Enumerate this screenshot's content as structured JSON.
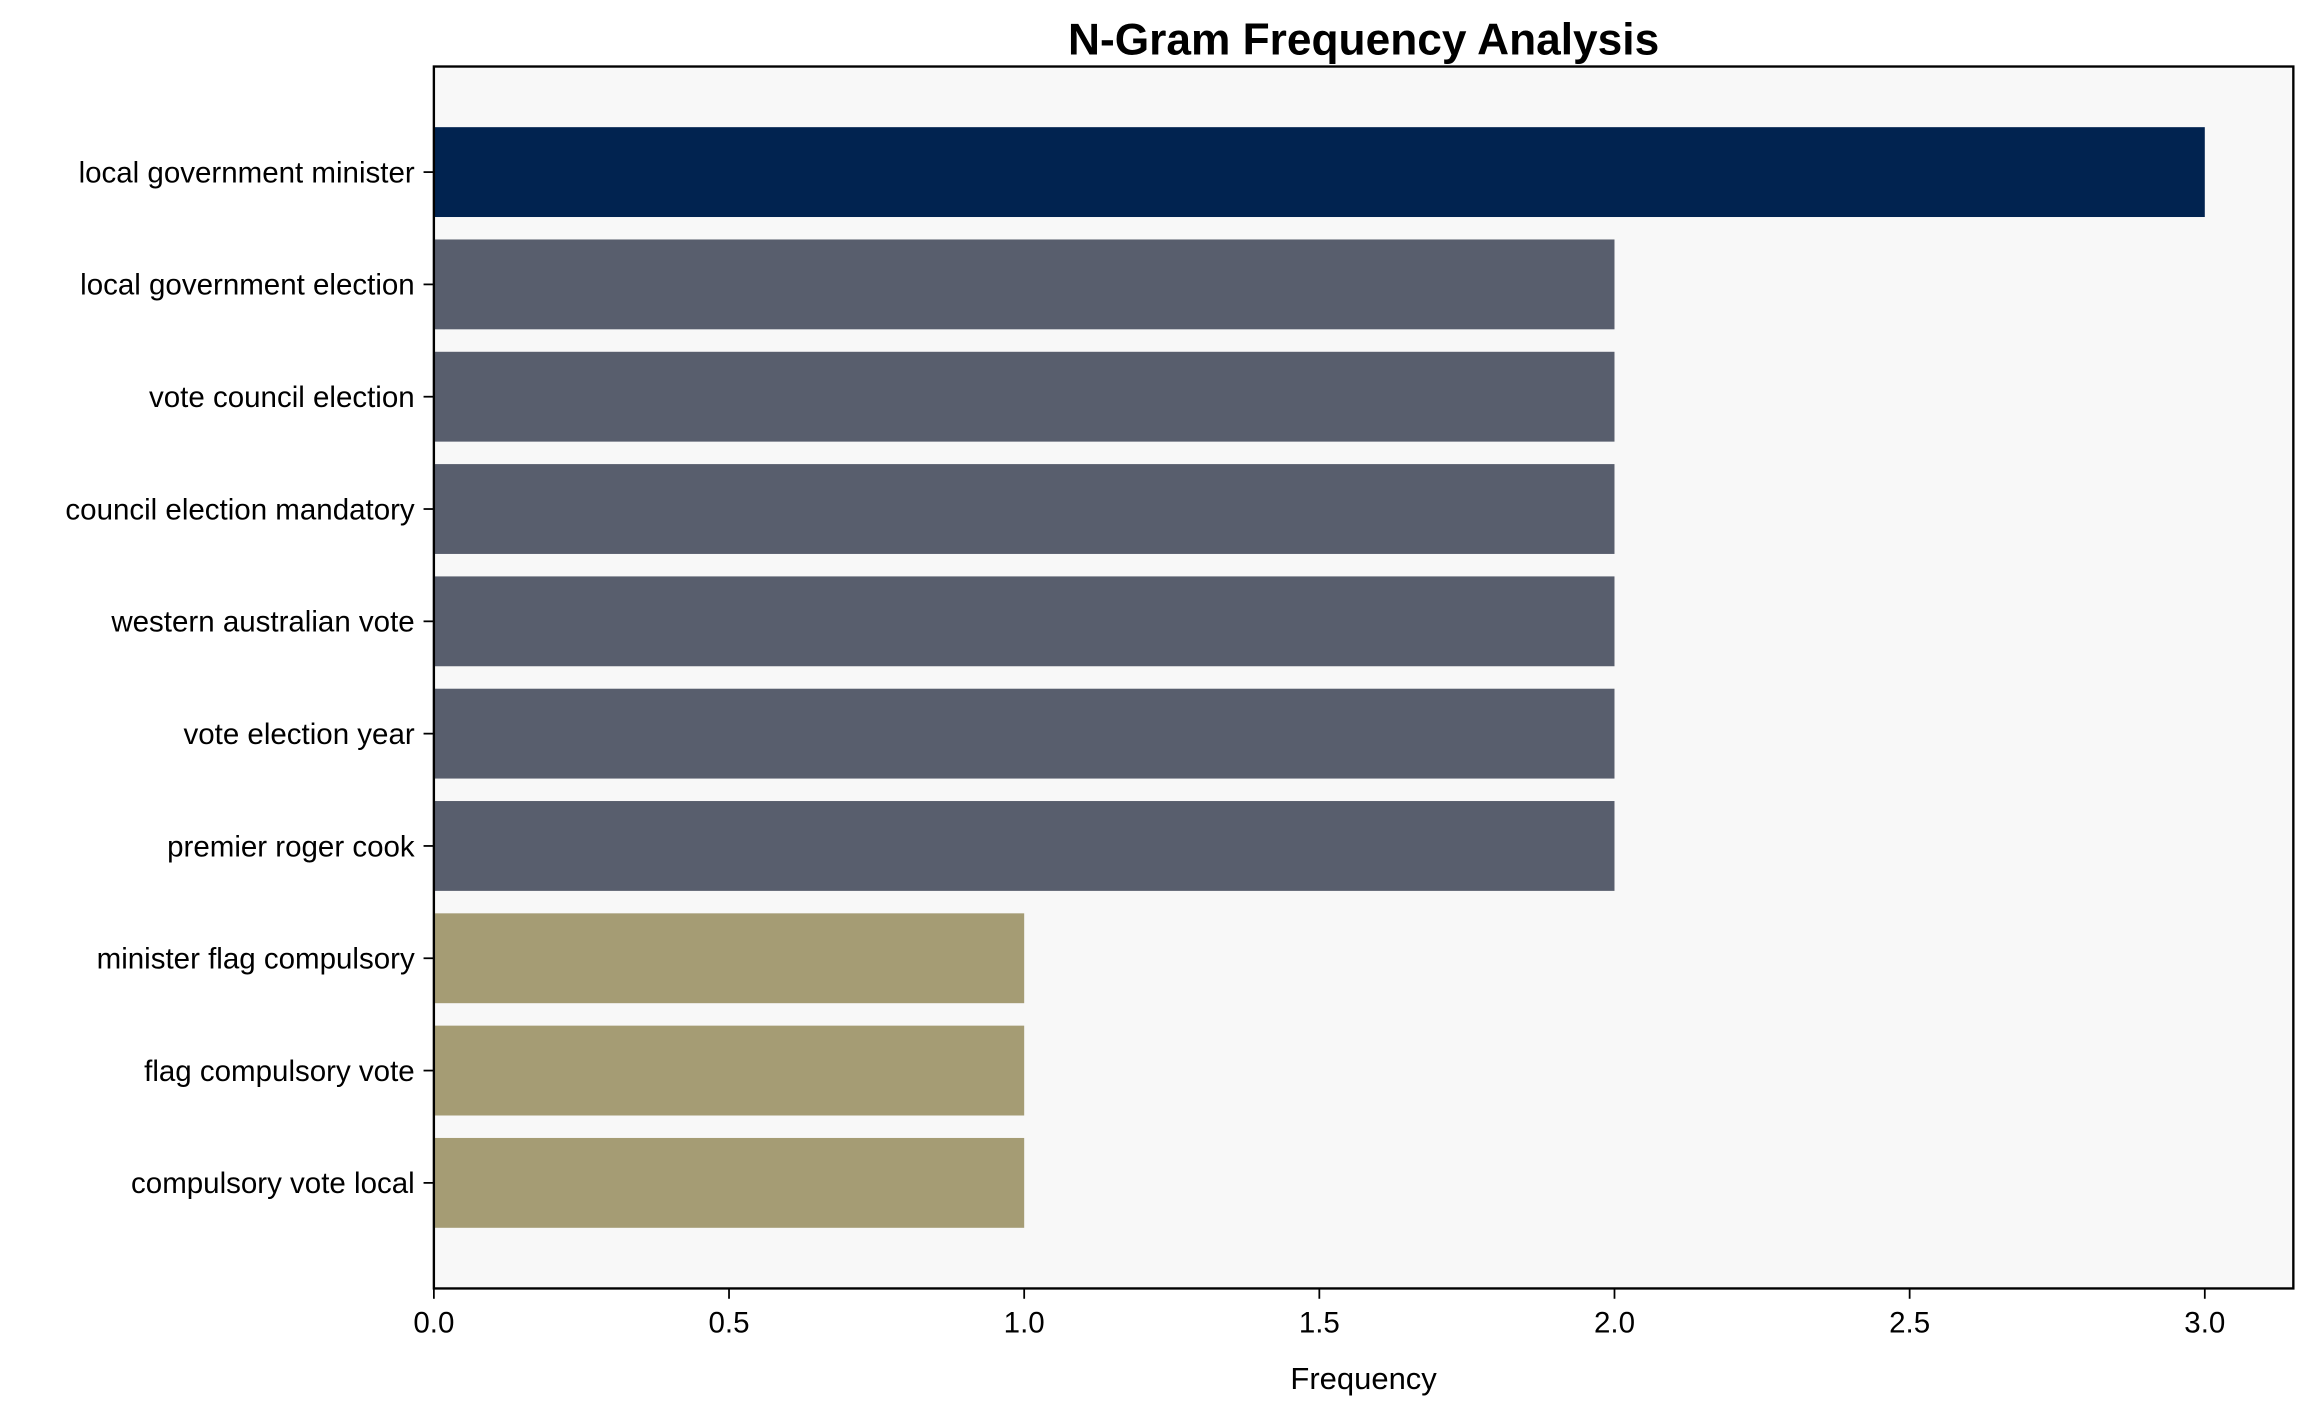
{
  "chart_data": {
    "type": "bar",
    "orientation": "horizontal",
    "title": "N-Gram Frequency Analysis",
    "xlabel": "Frequency",
    "ylabel": "",
    "xlim": [
      0,
      3.15
    ],
    "xticks": [
      "0.0",
      "0.5",
      "1.0",
      "1.5",
      "2.0",
      "2.5",
      "3.0"
    ],
    "grid": false,
    "categories": [
      "local government minister",
      "local government election",
      "vote council election",
      "council election mandatory",
      "western australian vote",
      "vote election year",
      "premier roger cook",
      "minister flag compulsory",
      "flag compulsory vote",
      "compulsory vote local"
    ],
    "values": [
      3,
      2,
      2,
      2,
      2,
      2,
      2,
      1,
      1,
      1
    ],
    "colors": [
      "#012350",
      "#585e6d",
      "#585e6d",
      "#585e6d",
      "#585e6d",
      "#585e6d",
      "#585e6d",
      "#a59c74",
      "#a59c74",
      "#a59c74"
    ],
    "background": "#f8f8f8"
  }
}
